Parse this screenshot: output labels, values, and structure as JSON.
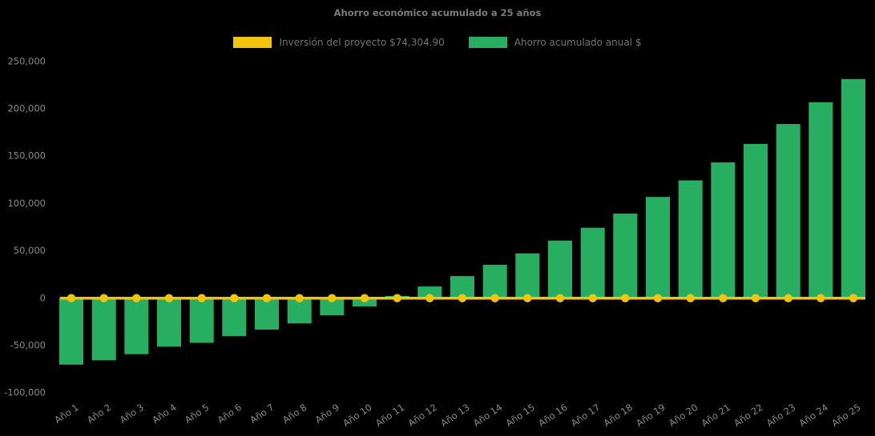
{
  "title": "Ahorro económico acumulado a 25 años",
  "legend": [
    {
      "label": "Inversión del proyecto $74,304.90",
      "color": "#F1C40F"
    },
    {
      "label": "Ahorro acumulado anual $",
      "color": "#27AE60"
    }
  ],
  "colors": {
    "background": "#000000",
    "bar_green": "#27AE60",
    "line_yellow": "#F1C40F",
    "marker_yellow": "#F1C40F",
    "title_text": "#7c7c7c",
    "tick_text": "#8a8a8a",
    "legend_text": "#757575"
  },
  "chart_data": {
    "type": "bar",
    "title": "Ahorro económico acumulado a 25 años",
    "xlabel": "",
    "ylabel": "",
    "background": "#000000",
    "grid": false,
    "legend_position": "top-center",
    "ylim": [
      -100000,
      250000
    ],
    "ytick_values": [
      250000,
      200000,
      150000,
      100000,
      50000,
      0,
      -50000,
      -100000
    ],
    "ytick_labels": [
      "250,000",
      "200,000",
      "150,000",
      "100,000",
      "50,000",
      "0",
      "-50,000",
      "-100,000"
    ],
    "categories": [
      "Año 1",
      "Año 2",
      "Año 3",
      "Año 4",
      "Año 5",
      "Año 6",
      "Año 7",
      "Año 8",
      "Año 9",
      "Año 10",
      "Año 11",
      "Año 12",
      "Año 13",
      "Año 14",
      "Año 15",
      "Año 16",
      "Año 17",
      "Año 18",
      "Año 19",
      "Año 20",
      "Año 21",
      "Año 22",
      "Año 23",
      "Año 24",
      "Año 25"
    ],
    "series": [
      {
        "name": "Ahorro acumulado anual $",
        "type": "bar",
        "color": "#27AE60",
        "values": [
          -70500,
          -66000,
          -59500,
          -51500,
          -47500,
          -40500,
          -33500,
          -27000,
          -18500,
          -9000,
          2000,
          12000,
          23000,
          35000,
          47000,
          60500,
          74000,
          89000,
          106500,
          124000,
          143000,
          162500,
          183500,
          206500,
          231000
        ]
      },
      {
        "name": "Inversión del proyecto $74,304.90",
        "type": "line",
        "color": "#F1C40F",
        "values": [
          0,
          0,
          0,
          0,
          0,
          0,
          0,
          0,
          0,
          0,
          0,
          0,
          0,
          0,
          0,
          0,
          0,
          0,
          0,
          0,
          0,
          0,
          0,
          0,
          0
        ]
      }
    ]
  }
}
